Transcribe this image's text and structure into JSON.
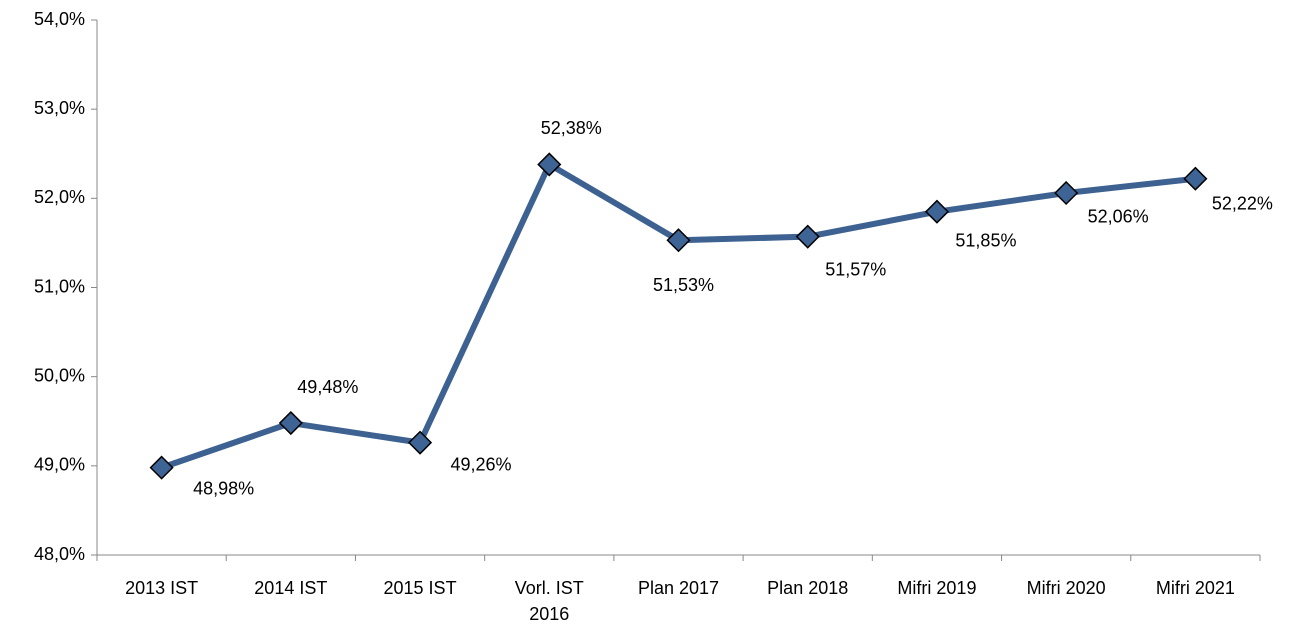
{
  "chart_data": {
    "type": "line",
    "categories": [
      "2013 IST",
      "2014 IST",
      "2015 IST",
      "Vorl. IST 2016",
      "Plan 2017",
      "Plan 2018",
      "Mifri 2019",
      "Mifri 2020",
      "Mifri 2021"
    ],
    "values": [
      48.98,
      49.48,
      49.26,
      52.38,
      51.53,
      51.57,
      51.85,
      52.06,
      52.22
    ],
    "value_labels": [
      "48,98%",
      "49,48%",
      "49,26%",
      "52,38%",
      "51,53%",
      "51,57%",
      "51,85%",
      "52,06%",
      "52,22%"
    ],
    "color": "#3d6190",
    "ylim": [
      48,
      54
    ],
    "yticks": [
      {
        "value": 48,
        "label": "48,0%"
      },
      {
        "value": 49,
        "label": "49,0%"
      },
      {
        "value": 50,
        "label": "50,0%"
      },
      {
        "value": 51,
        "label": "51,0%"
      },
      {
        "value": 52,
        "label": "52,0%"
      },
      {
        "value": 53,
        "label": "53,0%"
      },
      {
        "value": 54,
        "label": "54,0%"
      }
    ]
  }
}
